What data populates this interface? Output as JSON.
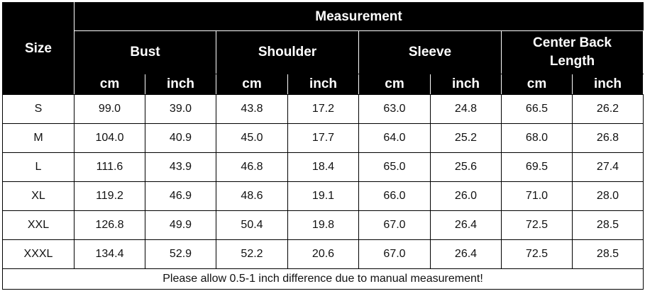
{
  "header": {
    "size_label": "Size",
    "measurement_label": "Measurement",
    "groups": [
      "Bust",
      "Shoulder",
      "Sleeve",
      "Center Back Length"
    ],
    "units": [
      "cm",
      "inch",
      "cm",
      "inch",
      "cm",
      "inch",
      "cm",
      "inch"
    ]
  },
  "rows": [
    {
      "size": "S",
      "values": [
        "99.0",
        "39.0",
        "43.8",
        "17.2",
        "63.0",
        "24.8",
        "66.5",
        "26.2"
      ]
    },
    {
      "size": "M",
      "values": [
        "104.0",
        "40.9",
        "45.0",
        "17.7",
        "64.0",
        "25.2",
        "68.0",
        "26.8"
      ]
    },
    {
      "size": "L",
      "values": [
        "111.6",
        "43.9",
        "46.8",
        "18.4",
        "65.0",
        "25.6",
        "69.5",
        "27.4"
      ]
    },
    {
      "size": "XL",
      "values": [
        "119.2",
        "46.9",
        "48.6",
        "19.1",
        "66.0",
        "26.0",
        "71.0",
        "28.0"
      ]
    },
    {
      "size": "XXL",
      "values": [
        "126.8",
        "49.9",
        "50.4",
        "19.8",
        "67.0",
        "26.4",
        "72.5",
        "28.5"
      ]
    },
    {
      "size": "XXXL",
      "values": [
        "134.4",
        "52.9",
        "52.2",
        "20.6",
        "67.0",
        "26.4",
        "72.5",
        "28.5"
      ]
    }
  ],
  "note": "Please allow 0.5-1 inch difference due to manual measurement!"
}
